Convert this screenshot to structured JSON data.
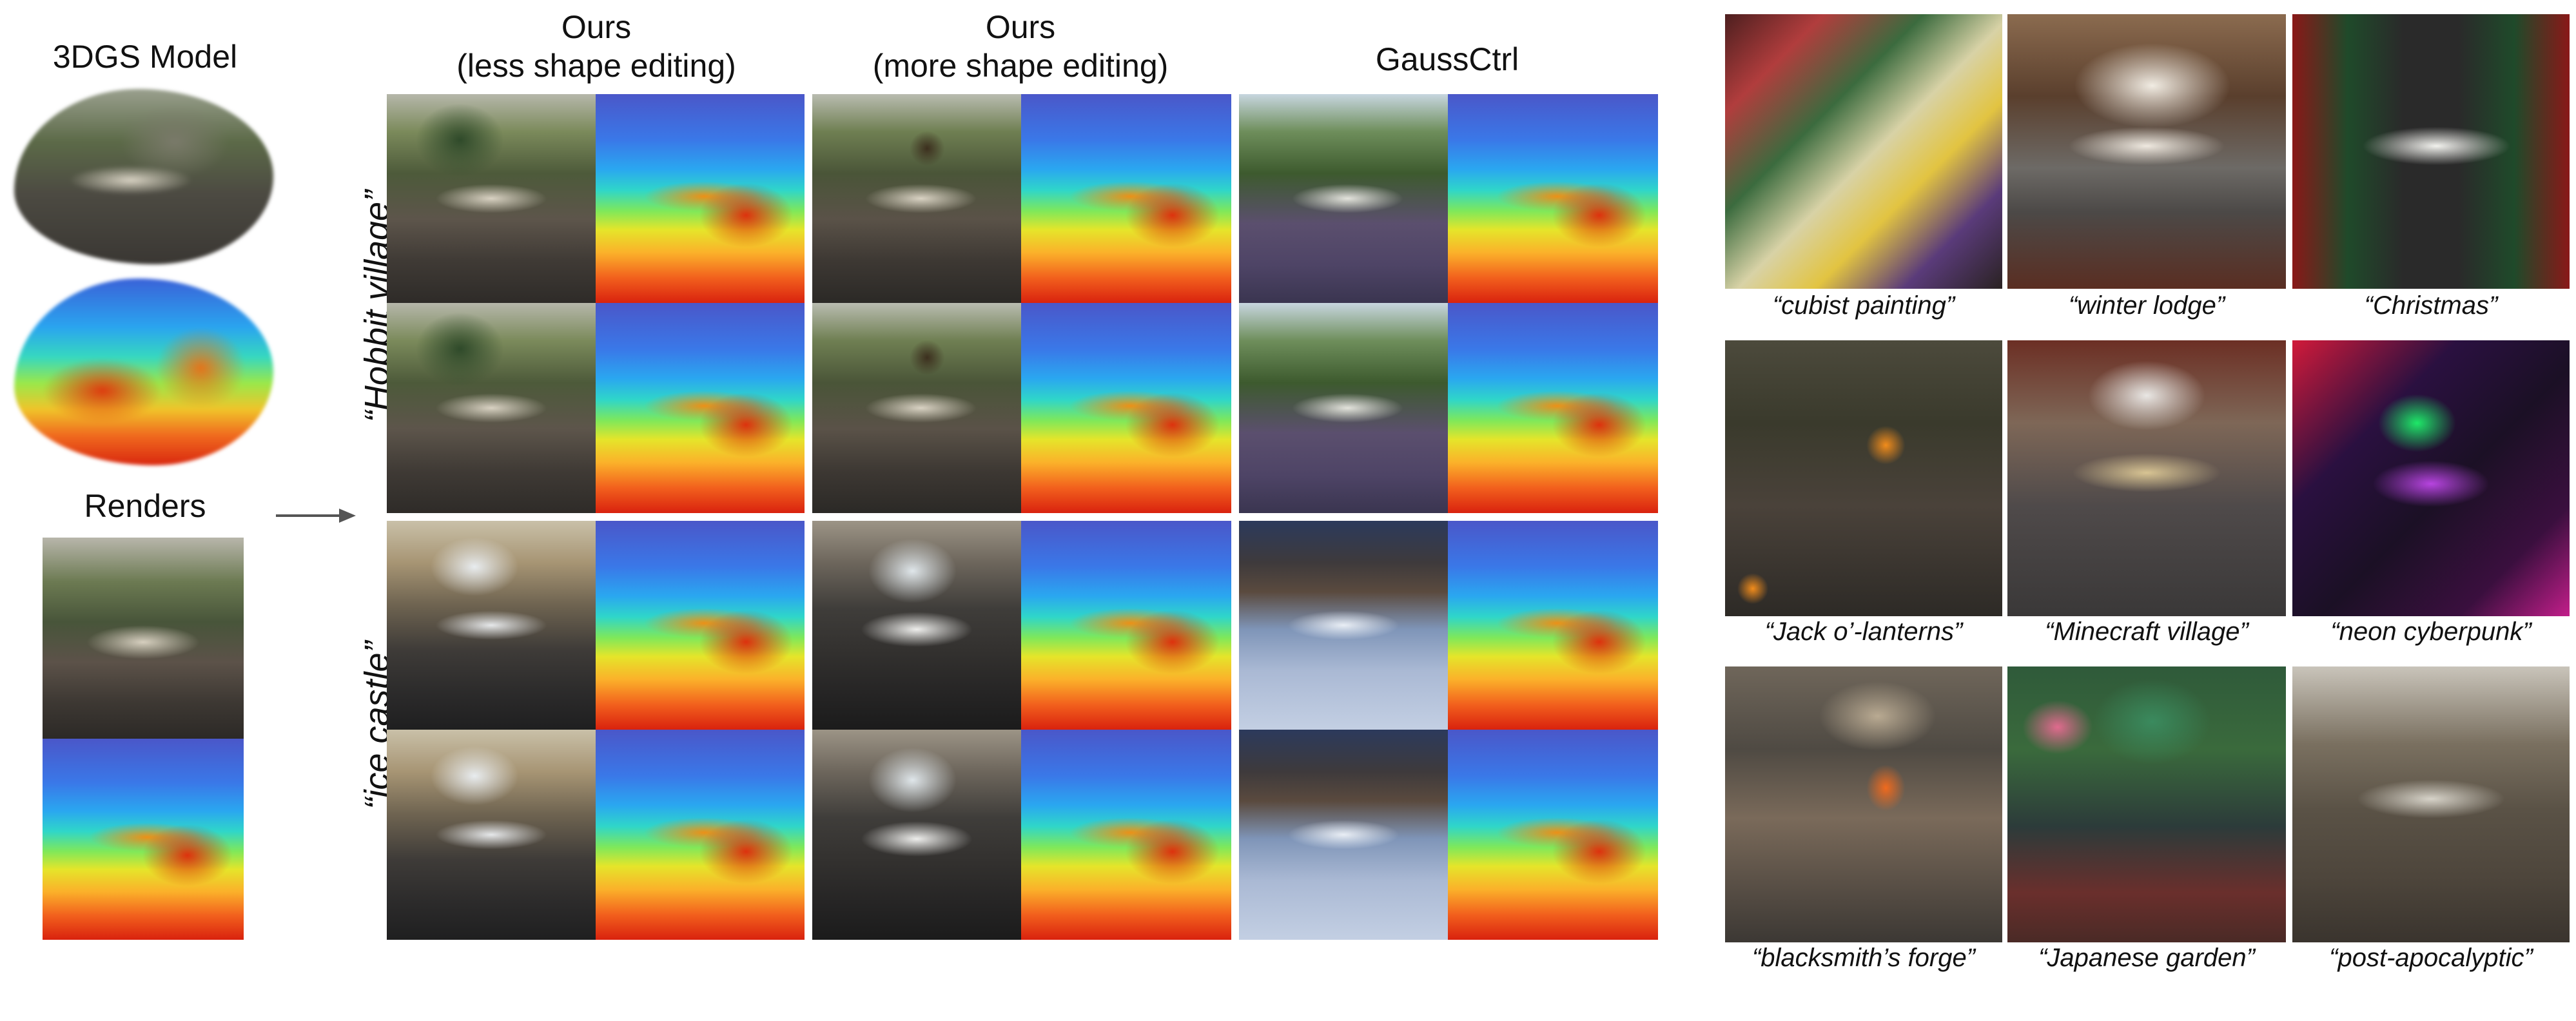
{
  "left": {
    "model_title": "3DGS Model",
    "renders_title": "Renders"
  },
  "columns": {
    "col1": [
      "Ours",
      "(less shape editing)"
    ],
    "col2": [
      "Ours",
      "(more shape editing)"
    ],
    "col3": "GaussCtrl"
  },
  "rows": {
    "row1": "“Hobbit village”",
    "row2": "“ice castle”"
  },
  "gallery": {
    "captions": [
      "“cubist painting”",
      "“winter lodge”",
      "“Christmas”",
      "“Jack o’-lanterns”",
      "“Minecraft village”",
      "“neon cyberpunk”",
      "“blacksmith’s forge”",
      "“Japanese garden”",
      "“post-apocalyptic”"
    ]
  }
}
